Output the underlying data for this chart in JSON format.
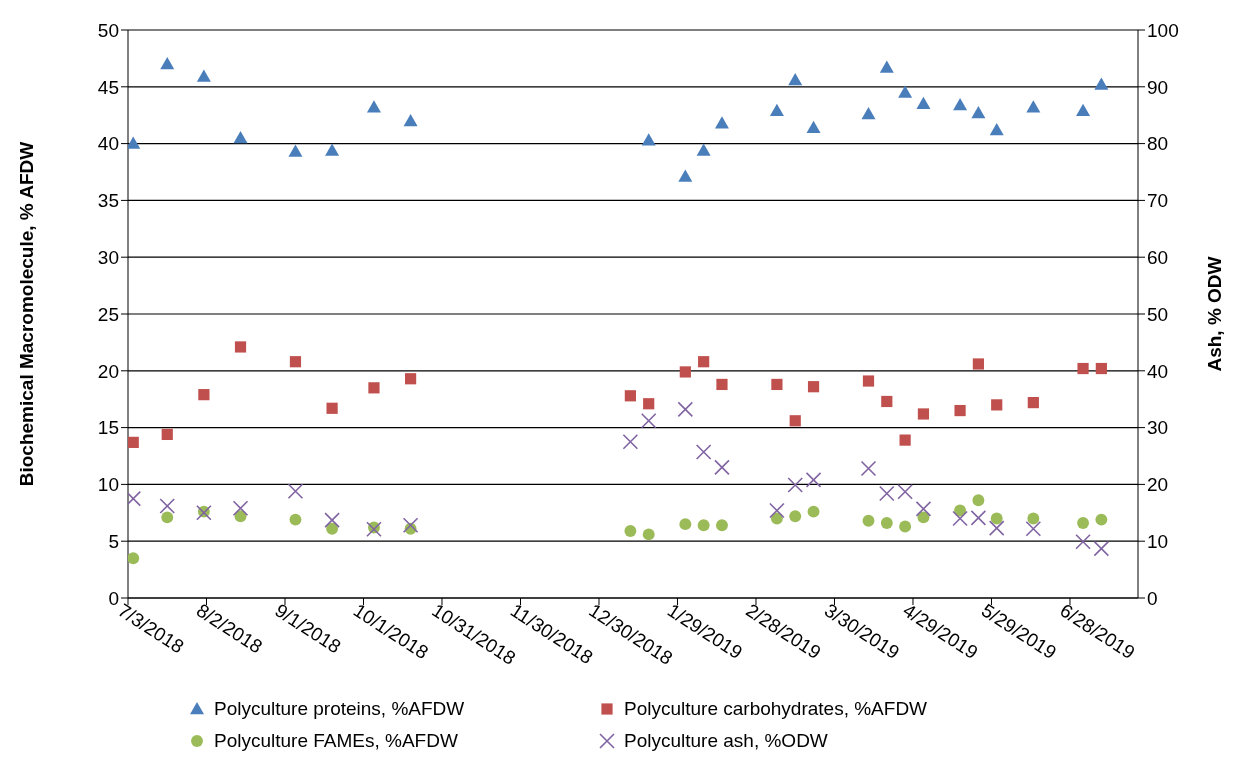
{
  "chart_data": {
    "type": "scatter",
    "xlabel": null,
    "ylabel": "Biochemical Macromolecule, % AFDW",
    "y2label": "Ash, % ODW",
    "xlim": [
      "2018-07-03",
      "2019-07-24"
    ],
    "xticks": [
      {
        "value": "2018-07-03",
        "label": "7/3/2018"
      },
      {
        "value": "2018-08-02",
        "label": "8/2/2018"
      },
      {
        "value": "2018-09-01",
        "label": "9/1/2018"
      },
      {
        "value": "2018-10-01",
        "label": "10/1/2018"
      },
      {
        "value": "2018-10-31",
        "label": "10/31/2018"
      },
      {
        "value": "2018-11-30",
        "label": "11/30/2018"
      },
      {
        "value": "2018-12-30",
        "label": "12/30/2018"
      },
      {
        "value": "2019-01-29",
        "label": "1/29/2019"
      },
      {
        "value": "2019-02-28",
        "label": "2/28/2019"
      },
      {
        "value": "2019-03-30",
        "label": "3/30/2019"
      },
      {
        "value": "2019-04-29",
        "label": "4/29/2019"
      },
      {
        "value": "2019-05-29",
        "label": "5/29/2019"
      },
      {
        "value": "2019-06-28",
        "label": "6/28/2019"
      }
    ],
    "ylim": [
      0,
      50
    ],
    "yticks": [
      0,
      5,
      10,
      15,
      20,
      25,
      30,
      35,
      40,
      45,
      50
    ],
    "y2lim": [
      0,
      100
    ],
    "y2ticks": [
      0,
      10,
      20,
      30,
      40,
      50,
      60,
      70,
      80,
      90,
      100
    ],
    "grid": "y",
    "legend": "bottom",
    "x": [
      "2018-07-05",
      "2018-07-18",
      "2018-08-01",
      "2018-08-15",
      "2018-09-05",
      "2018-09-19",
      "2018-10-05",
      "2018-10-19",
      "2019-01-11",
      "2019-01-18",
      "2019-02-01",
      "2019-02-08",
      "2019-02-15",
      "2019-03-08",
      "2019-03-15",
      "2019-03-22",
      "2019-04-12",
      "2019-04-19",
      "2019-04-26",
      "2019-05-03",
      "2019-05-17",
      "2019-05-24",
      "2019-05-31",
      "2019-06-14",
      "2019-07-03",
      "2019-07-10"
    ],
    "series": [
      {
        "name": "Polyculture proteins, %AFDW",
        "color": "#4a7ebb",
        "marker": "triangle",
        "x": [
          "2018-07-05",
          "2018-07-18",
          "2018-08-01",
          "2018-08-15",
          "2018-09-05",
          "2018-09-19",
          "2018-10-05",
          "2018-10-19",
          "2019-01-18",
          "2019-02-01",
          "2019-02-08",
          "2019-02-15",
          "2019-03-08",
          "2019-03-15",
          "2019-03-22",
          "2019-04-12",
          "2019-04-19",
          "2019-04-26",
          "2019-05-03",
          "2019-05-17",
          "2019-05-24",
          "2019-05-31",
          "2019-06-14",
          "2019-07-03",
          "2019-07-10"
        ],
        "values": [
          40.0,
          47.0,
          45.9,
          40.5,
          39.3,
          39.4,
          43.2,
          42.0,
          40.3,
          37.1,
          39.4,
          41.8,
          42.9,
          45.6,
          41.4,
          42.6,
          46.7,
          44.5,
          43.5,
          43.4,
          42.7,
          41.2,
          43.2,
          42.9,
          45.2
        ]
      },
      {
        "name": "Polyculture carbohydrates, %AFDW",
        "color": "#c0504d",
        "marker": "square",
        "values": [
          13.7,
          14.4,
          17.9,
          22.1,
          20.8,
          16.7,
          18.5,
          19.3,
          17.8,
          17.1,
          19.9,
          20.8,
          18.8,
          18.8,
          15.6,
          18.6,
          19.1,
          17.3,
          13.9,
          16.2,
          16.5,
          20.6,
          17.0,
          17.2,
          20.2,
          20.2
        ]
      },
      {
        "name": "Polyculture FAMEs, %AFDW",
        "color": "#9bbb59",
        "marker": "circle",
        "values": [
          3.5,
          7.1,
          7.6,
          7.2,
          6.9,
          6.1,
          6.2,
          6.1,
          5.9,
          5.6,
          6.5,
          6.4,
          6.4,
          7.0,
          7.2,
          7.6,
          6.8,
          6.6,
          6.3,
          7.1,
          7.7,
          8.6,
          7.0,
          7.0,
          6.6,
          6.9
        ]
      },
      {
        "name": "Polyculture ash, %ODW",
        "color": "#8064a2",
        "marker": "cross",
        "axis": "y2",
        "values": [
          17.5,
          16.2,
          15.0,
          15.8,
          18.8,
          13.7,
          12.1,
          12.8,
          27.5,
          31.2,
          33.2,
          25.7,
          23.0,
          15.4,
          19.9,
          20.8,
          22.8,
          18.4,
          18.7,
          15.7,
          14.0,
          14.1,
          12.3,
          12.2,
          9.9,
          8.7
        ]
      }
    ]
  }
}
